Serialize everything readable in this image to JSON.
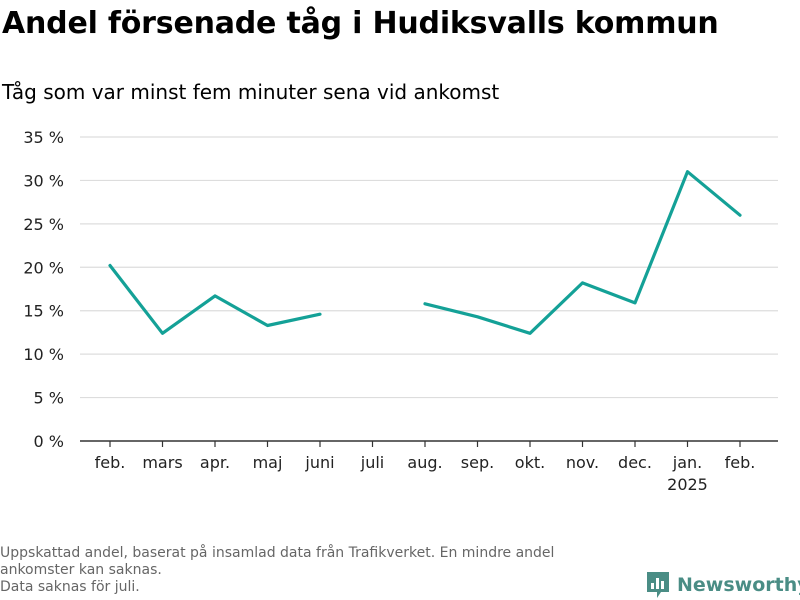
{
  "title": "Andel försenade tåg i Hudiksvalls kommun",
  "subtitle": "Tåg som var minst fem minuter sena vid ankomst",
  "footnote": {
    "line1": "Uppskattad andel, baserat på insamlad data från Trafikverket. En mindre andel",
    "line2": "ankomster kan saknas.",
    "line3": "Data saknas för juli."
  },
  "brand": {
    "name": "Newsworthy",
    "icon": "newsworthy-logo-icon",
    "color": "#4a8d85"
  },
  "colors": {
    "line": "#14a197",
    "grid": "#dddddd",
    "axis": "#333333"
  },
  "chart_data": {
    "type": "line",
    "categories": [
      "feb.",
      "mars",
      "apr.",
      "maj",
      "juni",
      "juli",
      "aug.",
      "sep.",
      "okt.",
      "nov.",
      "dec.",
      "jan.",
      "feb."
    ],
    "category_sublabels": [
      "",
      "",
      "",
      "",
      "",
      "",
      "",
      "",
      "",
      "",
      "",
      "2025",
      ""
    ],
    "values": [
      20.2,
      12.4,
      16.7,
      13.3,
      14.6,
      null,
      15.8,
      14.3,
      12.4,
      18.2,
      15.9,
      31.0,
      26.0
    ],
    "y_ticks": [
      "0 %",
      "5 %",
      "10 %",
      "15 %",
      "20 %",
      "25 %",
      "30 %",
      "35 %"
    ],
    "ylim": [
      0,
      35
    ],
    "grid": true,
    "legend": "none",
    "title": "Andel försenade tåg i Hudiksvalls kommun",
    "xlabel": "",
    "ylabel": ""
  }
}
